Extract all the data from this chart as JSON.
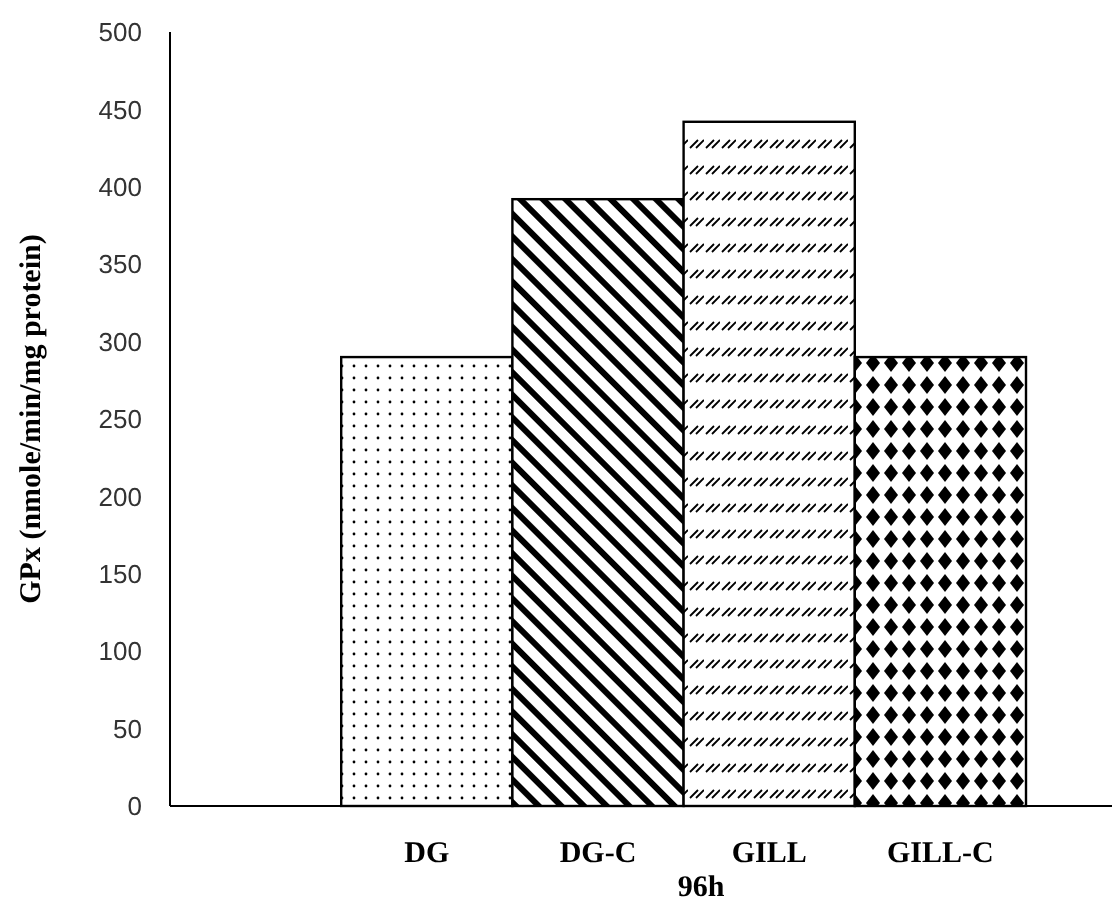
{
  "chart_data": {
    "type": "bar",
    "xlabel": "96h",
    "ylabel": "GPx (nmole/min/mg protein)",
    "categories": [
      null,
      "DG",
      "DG-C",
      "GILL",
      "GILL-C"
    ],
    "values": [
      null,
      290,
      392,
      442,
      290
    ],
    "color": "#000000",
    "ylim": [
      0,
      500
    ],
    "yticks": [
      0,
      50,
      100,
      150,
      200,
      250,
      300,
      350,
      400,
      450,
      500
    ],
    "grid": false
  }
}
